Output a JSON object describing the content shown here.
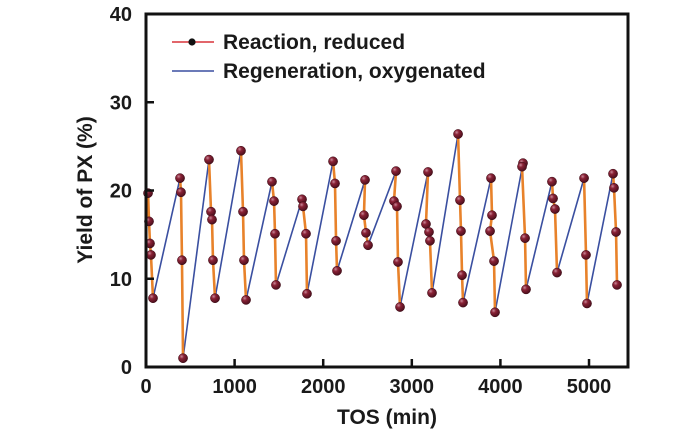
{
  "chart_data": {
    "type": "line",
    "title": "",
    "xlabel": "TOS (min)",
    "ylabel": "Yield of PX (%)",
    "xlim": [
      0,
      5440
    ],
    "ylim": [
      0,
      40
    ],
    "xticks": [
      0,
      1000,
      2000,
      3000,
      4000,
      5000
    ],
    "yticks": [
      0,
      10,
      20,
      30,
      40
    ],
    "xtick_labels": [
      "0",
      "1000",
      "2000",
      "3000",
      "4000",
      "5000"
    ],
    "ytick_labels": [
      "0",
      "10",
      "20",
      "30",
      "40"
    ],
    "grid": false,
    "legend_position": "top-left",
    "colors": {
      "reaction": "#E8822A",
      "regeneration": "#3A4FA0",
      "marker": "#7A1A2A",
      "legend_reaction_line": "#D8343A",
      "axis": "#111111"
    },
    "series": [
      {
        "name": "Reaction, reduced",
        "style": "line-with-markers",
        "cycles": [
          {
            "x": [
              23,
              34,
              45,
              56,
              79
            ],
            "y": [
              19.7,
              16.5,
              14.0,
              12.7,
              7.8
            ]
          },
          {
            "x": [
              384,
              395,
              406,
              418
            ],
            "y": [
              21.4,
              19.8,
              12.1,
              1.0
            ]
          },
          {
            "x": [
              711,
              734,
              745,
              756,
              779
            ],
            "y": [
              23.5,
              17.6,
              16.7,
              12.1,
              7.8
            ]
          },
          {
            "x": [
              1072,
              1095,
              1106,
              1129
            ],
            "y": [
              24.5,
              17.6,
              12.1,
              7.6
            ]
          },
          {
            "x": [
              1422,
              1445,
              1456,
              1467
            ],
            "y": [
              21.0,
              18.8,
              15.1,
              9.3
            ]
          },
          {
            "x": [
              1761,
              1772,
              1806,
              1817
            ],
            "y": [
              19.0,
              18.2,
              15.1,
              8.3
            ]
          },
          {
            "x": [
              2111,
              2133,
              2145,
              2156
            ],
            "y": [
              23.3,
              20.8,
              14.3,
              10.9
            ]
          },
          {
            "x": [
              2472,
              2460,
              2483,
              2506
            ],
            "y": [
              21.2,
              17.2,
              15.2,
              13.8
            ]
          },
          {
            "x": [
              2822,
              2799,
              2833,
              2844,
              2867
            ],
            "y": [
              22.2,
              18.8,
              18.2,
              11.9,
              6.8
            ]
          },
          {
            "x": [
              3183,
              3160,
              3194,
              3205,
              3228
            ],
            "y": [
              22.1,
              16.2,
              15.3,
              14.3,
              8.4
            ]
          },
          {
            "x": [
              3522,
              3544,
              3555,
              3567,
              3578
            ],
            "y": [
              26.4,
              18.9,
              15.4,
              10.4,
              7.3
            ]
          },
          {
            "x": [
              3894,
              3905,
              3883,
              3928,
              3939
            ],
            "y": [
              21.4,
              17.2,
              15.4,
              12.0,
              6.2
            ]
          },
          {
            "x": [
              4255,
              4244,
              4278,
              4289
            ],
            "y": [
              23.1,
              22.7,
              14.6,
              8.8
            ]
          },
          {
            "x": [
              4582,
              4594,
              4616,
              4639
            ],
            "y": [
              21.0,
              19.1,
              17.9,
              10.7
            ]
          },
          {
            "x": [
              4944,
              4966,
              4977
            ],
            "y": [
              21.4,
              12.7,
              7.2
            ]
          },
          {
            "x": [
              5271,
              5282,
              5305,
              5316
            ],
            "y": [
              21.9,
              20.3,
              15.3,
              9.3
            ]
          }
        ]
      },
      {
        "name": "Regeneration, oxygenated",
        "style": "line",
        "segments": [
          {
            "x": [
              79,
              384
            ],
            "y": [
              7.8,
              21.4
            ]
          },
          {
            "x": [
              418,
              711
            ],
            "y": [
              1.0,
              23.5
            ]
          },
          {
            "x": [
              779,
              1072
            ],
            "y": [
              7.8,
              24.5
            ]
          },
          {
            "x": [
              1129,
              1422
            ],
            "y": [
              7.6,
              21.0
            ]
          },
          {
            "x": [
              1467,
              1761
            ],
            "y": [
              9.3,
              19.0
            ]
          },
          {
            "x": [
              1817,
              2111
            ],
            "y": [
              8.3,
              23.3
            ]
          },
          {
            "x": [
              2156,
              2472
            ],
            "y": [
              10.9,
              21.2
            ]
          },
          {
            "x": [
              2506,
              2822
            ],
            "y": [
              13.8,
              22.2
            ]
          },
          {
            "x": [
              2867,
              3183
            ],
            "y": [
              6.8,
              22.1
            ]
          },
          {
            "x": [
              3228,
              3522
            ],
            "y": [
              8.4,
              26.4
            ]
          },
          {
            "x": [
              3578,
              3894
            ],
            "y": [
              7.3,
              21.4
            ]
          },
          {
            "x": [
              3939,
              4255
            ],
            "y": [
              6.2,
              23.1
            ]
          },
          {
            "x": [
              4289,
              4582
            ],
            "y": [
              8.8,
              21.0
            ]
          },
          {
            "x": [
              4639,
              4944
            ],
            "y": [
              10.7,
              21.4
            ]
          },
          {
            "x": [
              4977,
              5271
            ],
            "y": [
              7.2,
              21.9
            ]
          }
        ]
      }
    ]
  }
}
